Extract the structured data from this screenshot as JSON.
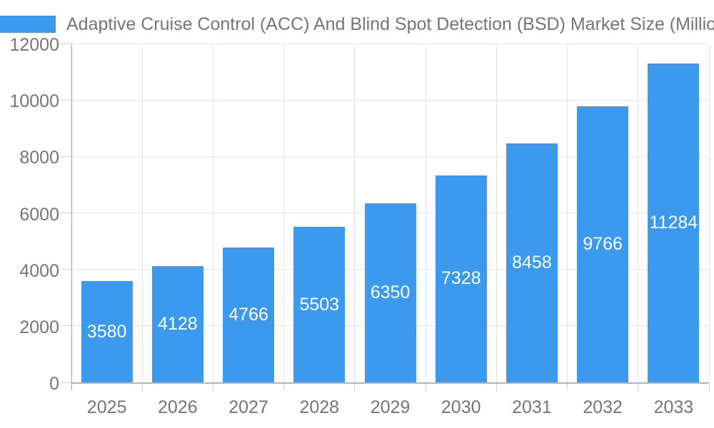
{
  "chart_data": {
    "type": "bar",
    "title": "Adaptive Cruise Control (ACC) And Blind Spot Detection (BSD) Market Size (Million)",
    "categories": [
      "2025",
      "2026",
      "2027",
      "2028",
      "2029",
      "2030",
      "2031",
      "2032",
      "2033"
    ],
    "values": [
      3580,
      4128,
      4766,
      5503,
      6350,
      7328,
      8458,
      9766,
      11284
    ],
    "xlabel": "",
    "ylabel": "",
    "ylim": [
      0,
      12000
    ],
    "yticks": [
      0,
      2000,
      4000,
      6000,
      8000,
      10000,
      12000
    ],
    "grid": true,
    "legend_position": "top-left",
    "bar_value_labels_visible": true,
    "colors": {
      "bar": "#3B99EE",
      "bar_label_text": "#FFFFFF",
      "axis_text": "#757575",
      "axis_line": "#9E9E9E",
      "baseline": "#B3B3B3",
      "gridline": "#E2E2E2",
      "tick": "#CFCFCF",
      "background": "#FFFFFF"
    }
  }
}
